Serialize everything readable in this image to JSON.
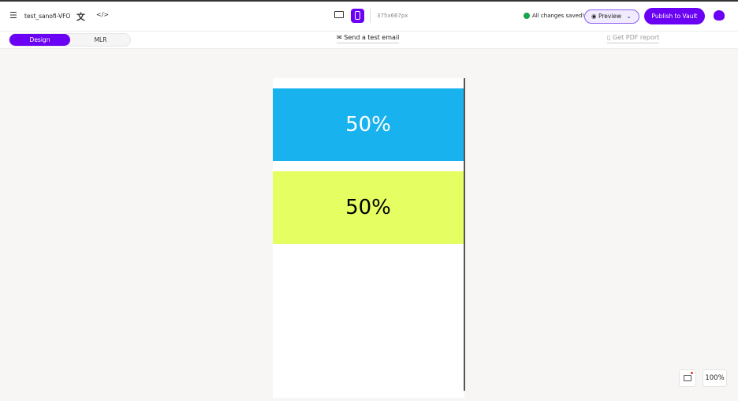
{
  "header": {
    "doc_title": "test_sanofi-VFO",
    "dimension": "375x667px",
    "save_status": "All changes saved!",
    "preview_label": "Preview",
    "publish_label": "Publish to Vault"
  },
  "subbar": {
    "tabs": [
      {
        "label": "Design",
        "active": true
      },
      {
        "label": "MLR",
        "active": false
      }
    ],
    "send_test_email": "Send a test email",
    "get_pdf_report": "Get PDF report"
  },
  "canvas": {
    "blocks": [
      {
        "text": "50%",
        "bg": "#18b2ee",
        "color": "#ffffff"
      },
      {
        "text": "50%",
        "bg": "#e5ff63",
        "color": "#000000"
      }
    ]
  },
  "footer": {
    "zoom": "100%"
  },
  "colors": {
    "accent": "#6a00f4",
    "success": "#1aa34a"
  }
}
